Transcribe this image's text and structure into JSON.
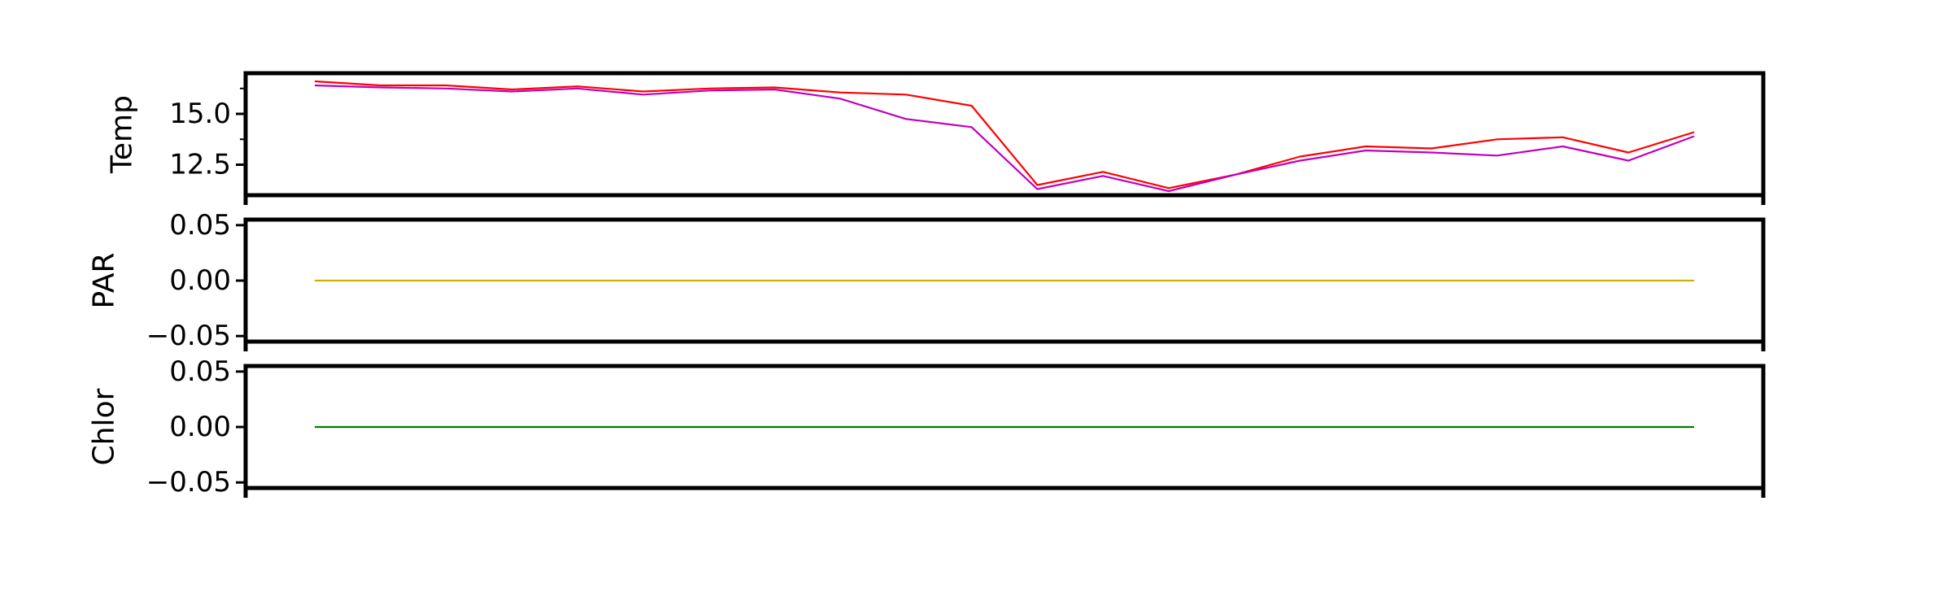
{
  "chart_data": [
    {
      "type": "line",
      "ylabel": "Temp",
      "ylim": [
        11.0,
        17.0
      ],
      "yticks": [
        {
          "value": 12.5,
          "label": "12.5"
        },
        {
          "value": 15.0,
          "label": "15.0"
        }
      ],
      "minor_yticks": [
        13.75,
        16.25
      ],
      "x": [
        1,
        2,
        3,
        4,
        5,
        6,
        7,
        8,
        9,
        10,
        11,
        12,
        13,
        14,
        15,
        16,
        17,
        18,
        19,
        20,
        21,
        22
      ],
      "series": [
        {
          "color": "#ff0000",
          "values": [
            16.6,
            16.4,
            16.4,
            16.2,
            16.35,
            16.1,
            16.25,
            16.3,
            16.05,
            15.95,
            15.4,
            11.5,
            12.15,
            11.35,
            12.0,
            12.9,
            13.4,
            13.3,
            13.75,
            13.85,
            13.1,
            14.1
          ]
        },
        {
          "color": "#c000c0",
          "values": [
            16.4,
            16.3,
            16.25,
            16.1,
            16.25,
            15.95,
            16.15,
            16.2,
            15.75,
            14.75,
            14.35,
            11.3,
            11.95,
            11.2,
            12.0,
            12.7,
            13.2,
            13.1,
            12.95,
            13.4,
            12.7,
            13.9
          ]
        }
      ]
    },
    {
      "type": "line",
      "ylabel": "PAR",
      "ylim": [
        -0.055,
        0.055
      ],
      "yticks": [
        {
          "value": -0.05,
          "label": "−0.05"
        },
        {
          "value": 0.0,
          "label": "0.00"
        },
        {
          "value": 0.05,
          "label": "0.05"
        }
      ],
      "x": [
        1,
        2,
        3,
        4,
        5,
        6,
        7,
        8,
        9,
        10,
        11,
        12,
        13,
        14,
        15,
        16,
        17,
        18,
        19,
        20,
        21,
        22
      ],
      "series": [
        {
          "color": "#c8b400",
          "values": [
            0,
            0,
            0,
            0,
            0,
            0,
            0,
            0,
            0,
            0,
            0,
            0,
            0,
            0,
            0,
            0,
            0,
            0,
            0,
            0,
            0,
            0
          ]
        }
      ]
    },
    {
      "type": "line",
      "ylabel": "Chlor",
      "ylim": [
        -0.055,
        0.055
      ],
      "yticks": [
        {
          "value": -0.05,
          "label": "−0.05"
        },
        {
          "value": 0.0,
          "label": "0.00"
        },
        {
          "value": 0.05,
          "label": "0.05"
        }
      ],
      "x": [
        1,
        2,
        3,
        4,
        5,
        6,
        7,
        8,
        9,
        10,
        11,
        12,
        13,
        14,
        15,
        16,
        17,
        18,
        19,
        20,
        21,
        22
      ],
      "series": [
        {
          "color": "#008000",
          "values": [
            0,
            0,
            0,
            0,
            0,
            0,
            0,
            0,
            0,
            0,
            0,
            0,
            0,
            0,
            0,
            0,
            0,
            0,
            0,
            0,
            0,
            0
          ]
        }
      ]
    }
  ]
}
